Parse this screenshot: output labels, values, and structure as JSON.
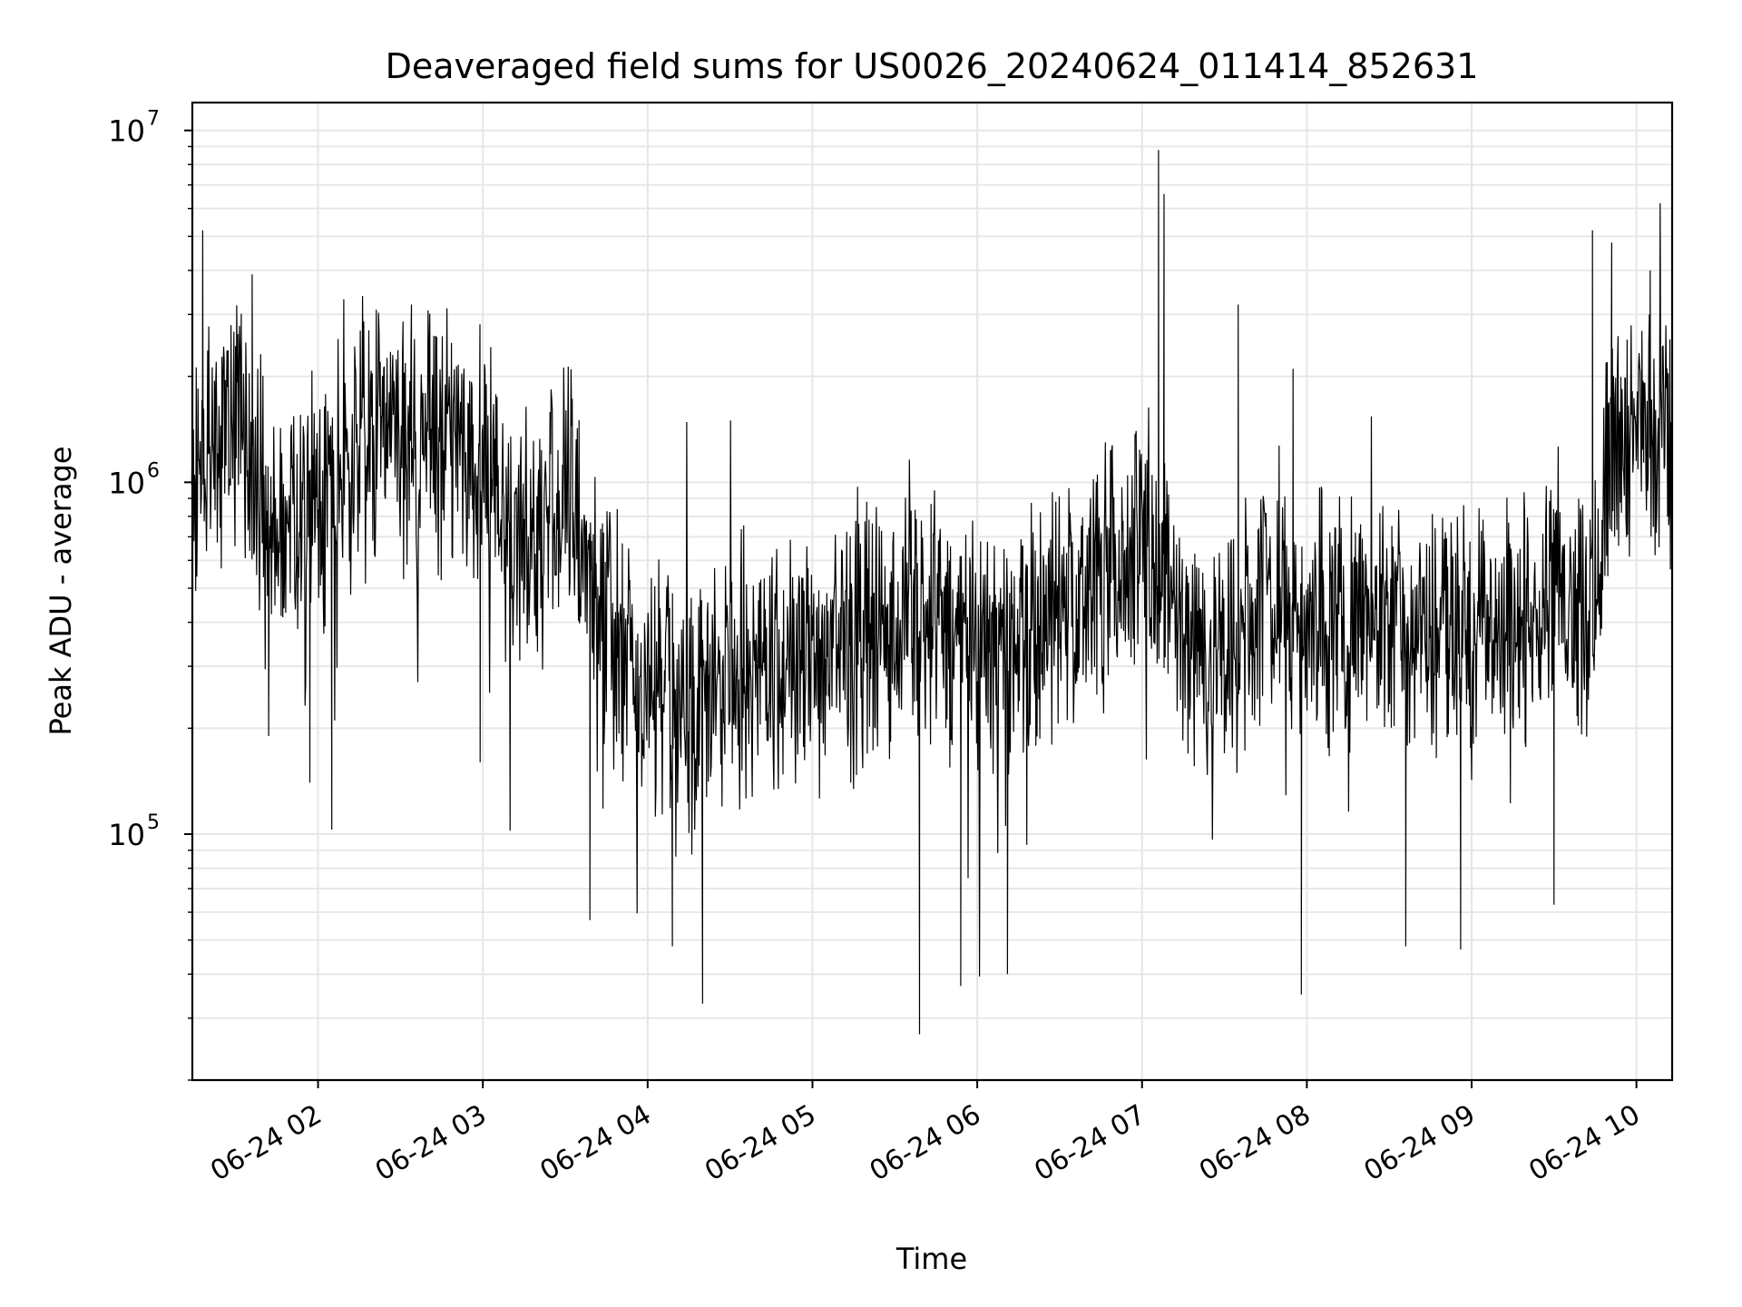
{
  "chart_data": {
    "type": "line",
    "title": "Deaveraged field sums for US0026_20240624_011414_852631",
    "xlabel": "Time",
    "ylabel": "Peak ADU - average",
    "x_scale": "time",
    "y_scale": "log",
    "xlim": [
      "2024-06-24 01:14:14",
      "2024-06-24 10:13:00"
    ],
    "ylim": [
      20000,
      12000000
    ],
    "grid": true,
    "line_color": "#000000",
    "x_ticks": [
      {
        "value": "2024-06-24 02:00",
        "label": "06-24 02"
      },
      {
        "value": "2024-06-24 03:00",
        "label": "06-24 03"
      },
      {
        "value": "2024-06-24 04:00",
        "label": "06-24 04"
      },
      {
        "value": "2024-06-24 05:00",
        "label": "06-24 05"
      },
      {
        "value": "2024-06-24 06:00",
        "label": "06-24 06"
      },
      {
        "value": "2024-06-24 07:00",
        "label": "06-24 07"
      },
      {
        "value": "2024-06-24 08:00",
        "label": "06-24 08"
      },
      {
        "value": "2024-06-24 09:00",
        "label": "06-24 09"
      },
      {
        "value": "2024-06-24 10:00",
        "label": "06-24 10"
      }
    ],
    "y_ticks": [
      {
        "value": 100000,
        "label": "10",
        "exponent": "5"
      },
      {
        "value": 1000000,
        "label": "10",
        "exponent": "6"
      },
      {
        "value": 10000000,
        "label": "10",
        "exponent": "7"
      }
    ],
    "series": [
      {
        "x": [
          "2024-06-24 01:14",
          "2024-06-24 01:20",
          "2024-06-24 01:30",
          "2024-06-24 01:40",
          "2024-06-24 01:50",
          "2024-06-24 02:00",
          "2024-06-24 02:10",
          "2024-06-24 02:20",
          "2024-06-24 02:30",
          "2024-06-24 02:40",
          "2024-06-24 02:50",
          "2024-06-24 03:00",
          "2024-06-24 03:10",
          "2024-06-24 03:20",
          "2024-06-24 03:30",
          "2024-06-24 03:40",
          "2024-06-24 03:50",
          "2024-06-24 04:00",
          "2024-06-24 04:15",
          "2024-06-24 04:30",
          "2024-06-24 04:45",
          "2024-06-24 05:00",
          "2024-06-24 05:15",
          "2024-06-24 05:30",
          "2024-06-24 05:45",
          "2024-06-24 06:00",
          "2024-06-24 06:15",
          "2024-06-24 06:30",
          "2024-06-24 06:45",
          "2024-06-24 07:00",
          "2024-06-24 07:15",
          "2024-06-24 07:30",
          "2024-06-24 07:45",
          "2024-06-24 08:00",
          "2024-06-24 08:15",
          "2024-06-24 08:30",
          "2024-06-24 08:45",
          "2024-06-24 09:00",
          "2024-06-24 09:15",
          "2024-06-24 09:30",
          "2024-06-24 09:45",
          "2024-06-24 09:50",
          "2024-06-24 10:00",
          "2024-06-24 10:13"
        ],
        "y": [
          1000000,
          1300000,
          1500000,
          900000,
          800000,
          850000,
          1100000,
          1300000,
          1400000,
          1300000,
          1300000,
          1100000,
          700000,
          650000,
          1000000,
          500000,
          350000,
          250000,
          250000,
          300000,
          300000,
          300000,
          350000,
          400000,
          400000,
          300000,
          350000,
          450000,
          500000,
          700000,
          400000,
          300000,
          500000,
          450000,
          400000,
          400000,
          400000,
          400000,
          400000,
          550000,
          450000,
          1300000,
          1400000,
          1400000
        ],
        "peaks": [
          {
            "x": "2024-06-24 01:18",
            "y": 5200000
          },
          {
            "x": "2024-06-24 01:36",
            "y": 3900000
          },
          {
            "x": "2024-06-24 02:34",
            "y": 3200000
          },
          {
            "x": "2024-06-24 07:06",
            "y": 8800000
          },
          {
            "x": "2024-06-24 07:08",
            "y": 6600000
          },
          {
            "x": "2024-06-24 07:35",
            "y": 3200000
          },
          {
            "x": "2024-06-24 07:55",
            "y": 2100000
          },
          {
            "x": "2024-06-24 09:44",
            "y": 5200000
          },
          {
            "x": "2024-06-24 09:51",
            "y": 4800000
          },
          {
            "x": "2024-06-24 10:05",
            "y": 4000000
          }
        ],
        "dips": [
          {
            "x": "2024-06-24 01:42",
            "y": 190000
          },
          {
            "x": "2024-06-24 01:57",
            "y": 140000
          },
          {
            "x": "2024-06-24 02:05",
            "y": 103000
          },
          {
            "x": "2024-06-24 02:59",
            "y": 160000
          },
          {
            "x": "2024-06-24 03:39",
            "y": 57000
          },
          {
            "x": "2024-06-24 04:09",
            "y": 48000
          },
          {
            "x": "2024-06-24 04:20",
            "y": 33000
          },
          {
            "x": "2024-06-24 05:39",
            "y": 27000
          },
          {
            "x": "2024-06-24 05:54",
            "y": 37000
          },
          {
            "x": "2024-06-24 06:11",
            "y": 40000
          },
          {
            "x": "2024-06-24 07:58",
            "y": 35000
          },
          {
            "x": "2024-06-24 08:36",
            "y": 48000
          },
          {
            "x": "2024-06-24 08:56",
            "y": 47000
          },
          {
            "x": "2024-06-24 09:30",
            "y": 63000
          }
        ]
      }
    ]
  }
}
